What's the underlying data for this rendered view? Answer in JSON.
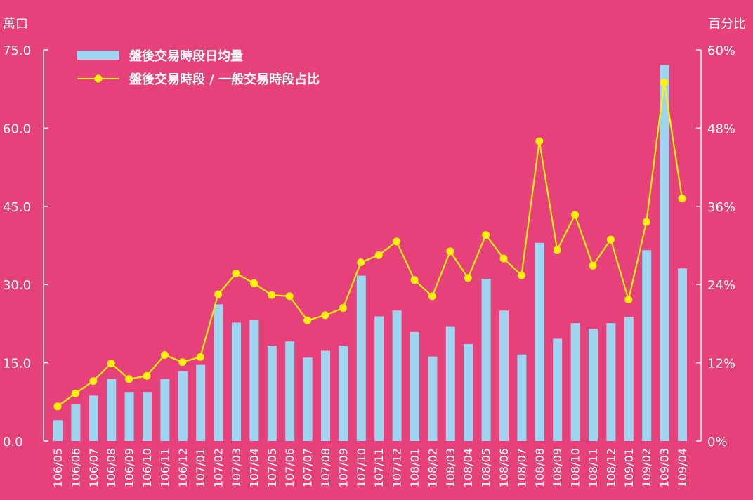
{
  "chart_data": {
    "type": "bar",
    "categories": [
      "106/05",
      "106/06",
      "106/07",
      "106/08",
      "106/09",
      "106/10",
      "106/11",
      "106/12",
      "107/01",
      "107/02",
      "107/03",
      "107/04",
      "107/05",
      "107/06",
      "107/07",
      "107/08",
      "107/09",
      "107/10",
      "107/11",
      "107/12",
      "108/01",
      "108/02",
      "108/03",
      "108/04",
      "108/05",
      "108/06",
      "108/07",
      "108/08",
      "108/09",
      "108/10",
      "108/11",
      "108/12",
      "109/01",
      "109/02",
      "109/03",
      "109/04"
    ],
    "series": [
      {
        "name": "盤後交易時段日均量",
        "type": "bar",
        "axis": "left",
        "color": "#9ED6F2",
        "values": [
          4.0,
          7.0,
          8.7,
          11.9,
          9.4,
          9.4,
          11.9,
          13.4,
          14.6,
          26.2,
          22.7,
          23.2,
          18.3,
          19.1,
          16.0,
          17.3,
          18.3,
          31.7,
          23.9,
          25.0,
          20.9,
          16.2,
          22.0,
          18.6,
          31.1,
          25.0,
          16.6,
          38.0,
          19.6,
          22.6,
          21.5,
          22.6,
          23.8,
          36.6,
          72.1,
          33.1
        ]
      },
      {
        "name": "盤後交易時段 / 一般交易時段占比",
        "type": "line",
        "axis": "right",
        "color": "#FFF200",
        "values": [
          5.3,
          7.3,
          9.2,
          11.9,
          9.5,
          10.0,
          13.2,
          12.1,
          12.9,
          22.5,
          25.7,
          24.2,
          22.4,
          22.2,
          18.5,
          19.3,
          20.4,
          27.4,
          28.5,
          30.6,
          24.7,
          22.2,
          29.1,
          25.0,
          31.6,
          28.0,
          25.4,
          46.0,
          29.3,
          34.7,
          26.9,
          30.9,
          21.7,
          33.6,
          55.0,
          37.2
        ]
      }
    ],
    "y_left": {
      "label": "萬口",
      "ylim": [
        0,
        75
      ],
      "ticks": [
        "75.0",
        "60.0",
        "45.0",
        "30.0",
        "15.0",
        "0.0"
      ],
      "tick_values": [
        75,
        60,
        45,
        30,
        15,
        0
      ]
    },
    "y_right": {
      "label": "百分比",
      "ylim": [
        0,
        60
      ],
      "ticks": [
        "60%",
        "48%",
        "36%",
        "24%",
        "12%",
        "0%"
      ],
      "tick_values": [
        60,
        48,
        36,
        24,
        12,
        0
      ]
    },
    "grid": false,
    "legend_position": "top-left"
  }
}
